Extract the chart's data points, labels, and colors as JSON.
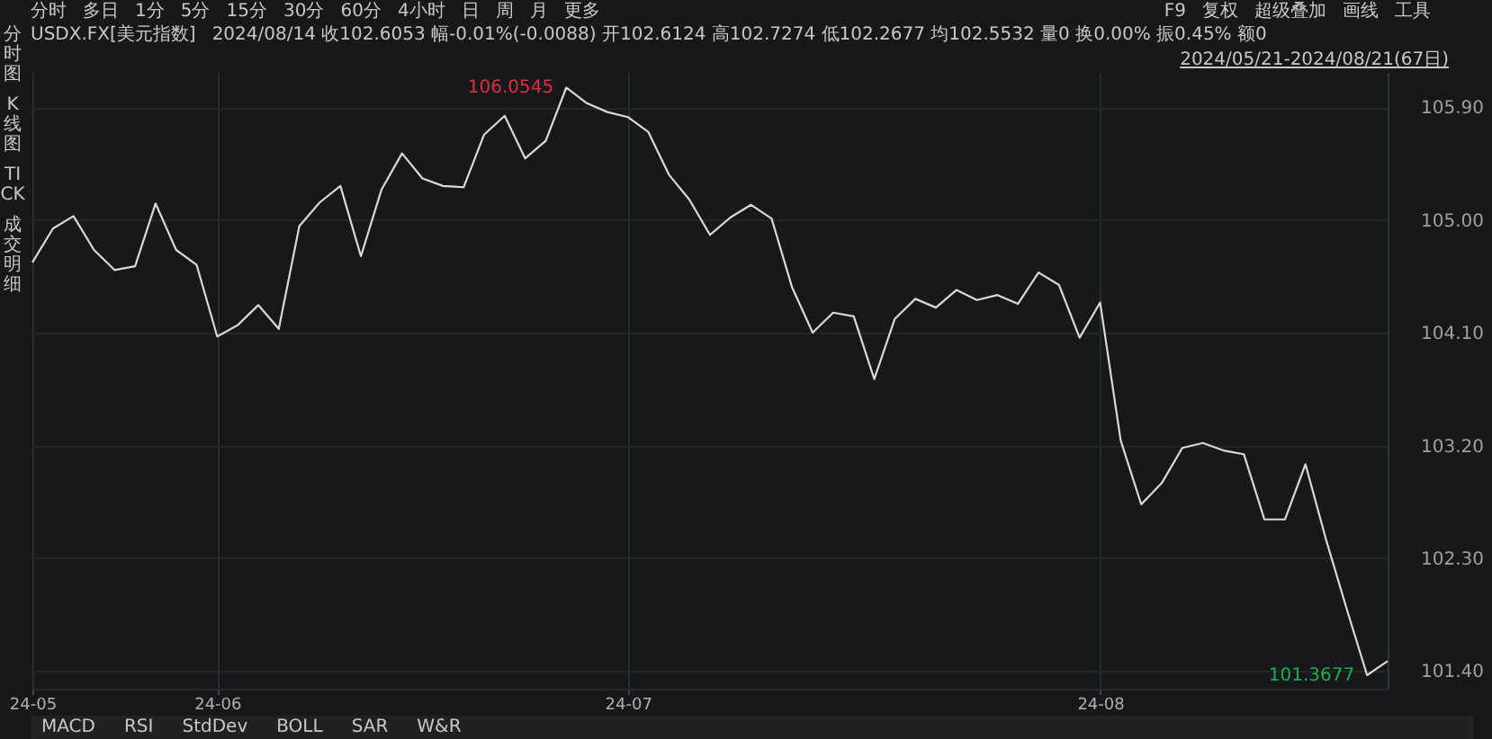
{
  "chart_data": {
    "type": "line",
    "title": "USDX.FX[美元指数]",
    "subtitle": "2024/08/14 收102.6053 幅-0.01%(-0.0088) 开102.6124 高102.7274 低102.2677 均102.5532 量0 换0.00% 振0.45% 额0",
    "categories": [
      "24-05",
      null,
      null,
      null,
      null,
      null,
      null,
      null,
      null,
      "24-06",
      null,
      null,
      null,
      null,
      null,
      null,
      null,
      null,
      null,
      null,
      null,
      null,
      null,
      null,
      null,
      null,
      null,
      null,
      null,
      "24-07",
      null,
      null,
      null,
      null,
      null,
      null,
      null,
      null,
      null,
      null,
      null,
      null,
      null,
      null,
      null,
      null,
      null,
      null,
      null,
      null,
      null,
      null,
      "24-08",
      null,
      null,
      null,
      null,
      null,
      null,
      null,
      null,
      null,
      null,
      null,
      null,
      null,
      null
    ],
    "series": [
      {
        "color": "#d9d9d9",
        "values": [
          104.66,
          104.93,
          105.03,
          104.76,
          104.6,
          104.63,
          105.13,
          104.76,
          104.64,
          104.07,
          104.16,
          104.32,
          104.13,
          104.95,
          105.14,
          105.27,
          104.71,
          105.24,
          105.53,
          105.33,
          105.27,
          105.26,
          105.68,
          105.83,
          105.49,
          105.63,
          106.0545,
          105.93,
          105.86,
          105.82,
          105.7,
          105.36,
          105.16,
          104.88,
          105.02,
          105.12,
          105.01,
          104.46,
          104.1,
          104.26,
          104.23,
          103.73,
          104.21,
          104.37,
          104.3,
          104.44,
          104.36,
          104.4,
          104.33,
          104.58,
          104.48,
          104.06,
          104.34,
          103.24,
          102.73,
          102.9,
          103.18,
          103.22,
          103.16,
          103.13,
          102.61,
          102.61,
          103.05,
          102.45,
          101.9,
          101.3677,
          101.48
        ]
      }
    ],
    "ylim": [
      101.26,
      106.18
    ],
    "yticks": [
      {
        "value": 101.4,
        "label": "101.40"
      },
      {
        "value": 102.3,
        "label": "102.30"
      },
      {
        "value": 103.2,
        "label": "103.20"
      },
      {
        "value": 104.1,
        "label": "104.10"
      },
      {
        "value": 105.0,
        "label": "105.00"
      },
      {
        "value": 105.9,
        "label": "105.90"
      }
    ],
    "grid": true,
    "marker": "none",
    "line_style": "solid",
    "annotations": [
      "106.0545",
      "101.3677",
      "分时",
      "多日",
      "1分",
      "5分",
      "15分",
      "30分",
      "60分",
      "4小时",
      "日",
      "周",
      "月",
      "更多",
      "F9",
      "复权",
      "超级叠加",
      "画线",
      "工具",
      "2024/05/21-2024/08/21(67日)",
      "分时图",
      "K线图",
      "TICK",
      "成交明细",
      "MACD",
      "RSI",
      "StdDev",
      "BOLL",
      "SAR",
      "W&R"
    ]
  }
}
